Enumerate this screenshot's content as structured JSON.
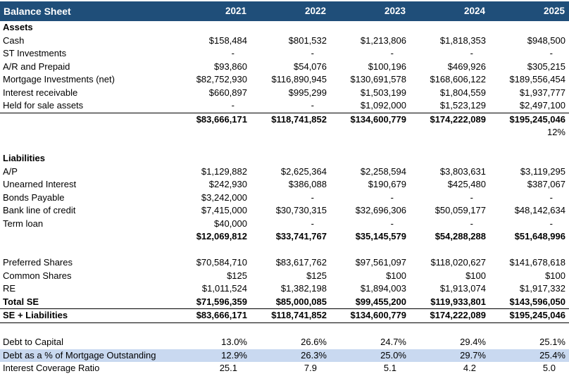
{
  "title": "Balance Sheet",
  "columns": [
    "2021",
    "2022",
    "2023",
    "2024",
    "2025"
  ],
  "colors": {
    "header_bg": "#1F4E79",
    "header_text": "#FFFFFF",
    "highlight_row": "#C9D9F0"
  },
  "rows": [
    {
      "type": "section",
      "label": "Assets",
      "values": [
        "",
        "",
        "",
        "",
        ""
      ]
    },
    {
      "type": "item",
      "label": "Cash",
      "values": [
        "$158,484",
        "$801,532",
        "$1,213,806",
        "$1,818,353",
        "$948,500"
      ]
    },
    {
      "type": "item",
      "label": "ST Investments",
      "values": [
        "-",
        "-",
        "-",
        "-",
        "-"
      ]
    },
    {
      "type": "item",
      "label": "A/R and Prepaid",
      "values": [
        "$93,860",
        "$54,076",
        "$100,196",
        "$469,926",
        "$305,215"
      ]
    },
    {
      "type": "item",
      "label": "Mortgage Investments (net)",
      "values": [
        "$82,752,930",
        "$116,890,945",
        "$130,691,578",
        "$168,606,122",
        "$189,556,454"
      ]
    },
    {
      "type": "item",
      "label": "Interest receivable",
      "values": [
        "$660,897",
        "$995,299",
        "$1,503,199",
        "$1,804,559",
        "$1,937,777"
      ]
    },
    {
      "type": "item-underlined",
      "label": "Held for sale assets",
      "values": [
        "-",
        "-",
        "$1,092,000",
        "$1,523,129",
        "$2,497,100"
      ]
    },
    {
      "type": "subtotal",
      "label": "",
      "values": [
        "$83,666,171",
        "$118,741,852",
        "$134,600,779",
        "$174,222,089",
        "$195,245,046"
      ]
    },
    {
      "type": "note",
      "label": "",
      "values": [
        "",
        "",
        "",
        "",
        "12%"
      ]
    },
    {
      "type": "spacer",
      "label": "",
      "values": [
        "",
        "",
        "",
        "",
        ""
      ]
    },
    {
      "type": "section",
      "label": "Liabilities",
      "values": [
        "",
        "",
        "",
        "",
        ""
      ]
    },
    {
      "type": "item",
      "label": "A/P",
      "values": [
        "$1,129,882",
        "$2,625,364",
        "$2,258,594",
        "$3,803,631",
        "$3,119,295"
      ]
    },
    {
      "type": "item",
      "label": "Unearned Interest",
      "values": [
        "$242,930",
        "$386,088",
        "$190,679",
        "$425,480",
        "$387,067"
      ]
    },
    {
      "type": "item",
      "label": "Bonds Payable",
      "values": [
        "$3,242,000",
        "-",
        "-",
        "-",
        "-"
      ]
    },
    {
      "type": "item",
      "label": "Bank line of credit",
      "values": [
        "$7,415,000",
        "$30,730,315",
        "$32,696,306",
        "$50,059,177",
        "$48,142,634"
      ]
    },
    {
      "type": "item",
      "label": "Term loan",
      "values": [
        "$40,000",
        "-",
        "-",
        "-",
        "-"
      ]
    },
    {
      "type": "subtotal",
      "label": "",
      "values": [
        "$12,069,812",
        "$33,741,767",
        "$35,145,579",
        "$54,288,288",
        "$51,648,996"
      ]
    },
    {
      "type": "spacer",
      "label": "",
      "values": [
        "",
        "",
        "",
        "",
        ""
      ]
    },
    {
      "type": "item",
      "label": "Preferred Shares",
      "values": [
        "$70,584,710",
        "$83,617,762",
        "$97,561,097",
        "$118,020,627",
        "$141,678,618"
      ]
    },
    {
      "type": "item",
      "label": "Common Shares",
      "values": [
        "$125",
        "$125",
        "$100",
        "$100",
        "$100"
      ]
    },
    {
      "type": "item",
      "label": "RE",
      "values": [
        "$1,011,524",
        "$1,382,198",
        "$1,894,003",
        "$1,913,074",
        "$1,917,332"
      ]
    },
    {
      "type": "total-underlined",
      "label": "Total SE",
      "values": [
        "$71,596,359",
        "$85,000,085",
        "$99,455,200",
        "$119,933,801",
        "$143,596,050"
      ]
    },
    {
      "type": "total-underlined",
      "label": "SE + Liabilities",
      "values": [
        "$83,666,171",
        "$118,741,852",
        "$134,600,779",
        "$174,222,089",
        "$195,245,046"
      ]
    },
    {
      "type": "spacer",
      "label": "",
      "values": [
        "",
        "",
        "",
        "",
        ""
      ]
    },
    {
      "type": "ratio",
      "label": "Debt to Capital",
      "values": [
        "13.0%",
        "26.6%",
        "24.7%",
        "29.4%",
        "25.1%"
      ]
    },
    {
      "type": "ratio-highlight",
      "label": "Debt as a % of Mortgage Outstanding",
      "values": [
        "12.9%",
        "26.3%",
        "25.0%",
        "29.7%",
        "25.4%"
      ]
    },
    {
      "type": "ratio-plain",
      "label": "Interest Coverage Ratio",
      "values": [
        "25.1",
        "7.9",
        "5.1",
        "4.2",
        "5.0"
      ]
    }
  ]
}
